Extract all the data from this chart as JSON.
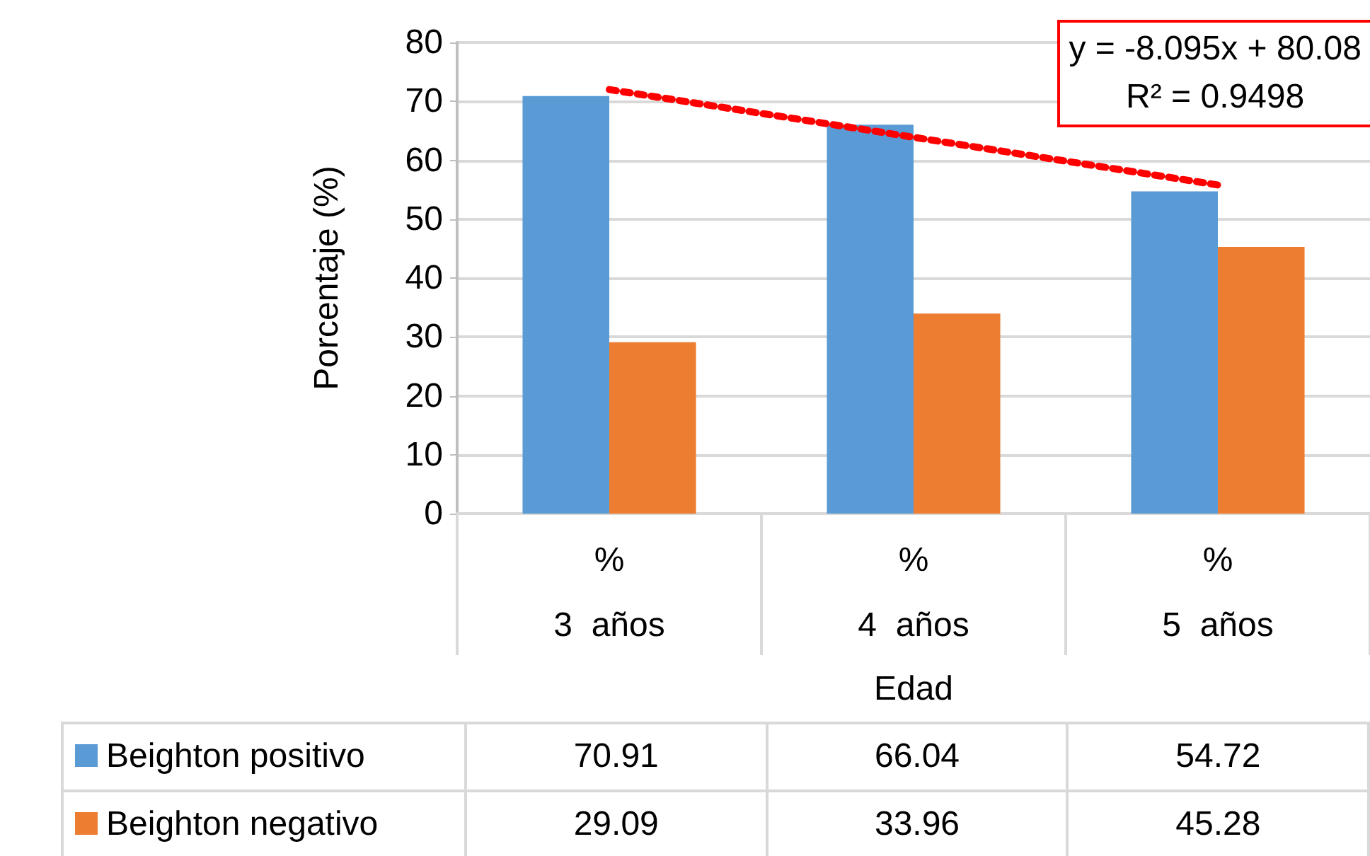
{
  "chart_data": {
    "type": "bar",
    "categories": [
      "%\n3  años",
      "%\n4  años",
      "%\n5  años"
    ],
    "series": [
      {
        "name": "Beighton positivo",
        "color": "#5b9bd5",
        "values": [
          70.91,
          66.04,
          54.72
        ],
        "value_labels": [
          "70.91",
          "66.04",
          "54.72"
        ]
      },
      {
        "name": "Beighton negativo",
        "color": "#ed7d31",
        "values": [
          29.09,
          33.96,
          45.28
        ],
        "value_labels": [
          "29.09",
          "33.96",
          "45.28"
        ]
      },
      {
        "type": "line",
        "color": "#ff0000",
        "values": [
          72.0,
          63.9,
          55.8
        ],
        "line_style": "dotted",
        "marker": "none"
      }
    ],
    "xlabel": "Edad",
    "ylabel": "Porcentaje (%)",
    "ylim": [
      0,
      80
    ],
    "yticks": [
      0,
      10,
      20,
      30,
      40,
      50,
      60,
      70,
      80
    ],
    "grid": "y",
    "legend": "bottom",
    "annotations": [
      "y = -8.095x + 80.08",
      "R² = 0.9498"
    ]
  }
}
